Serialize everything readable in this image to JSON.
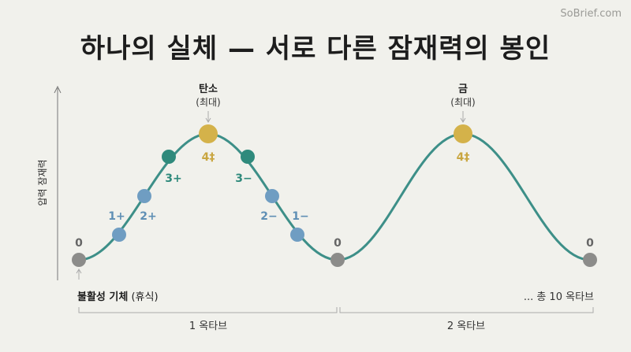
{
  "watermark": "SoBrief.com",
  "title": "하나의 실체 — 서로 다른 잠재력의 봉인",
  "y_axis_label": "압력 잠재력",
  "peaks": [
    {
      "name": "탄소",
      "sub": "(최대)",
      "value": "4‡"
    },
    {
      "name": "금",
      "sub": "(최대)",
      "value": "4‡"
    }
  ],
  "points_octave1": {
    "start": "0",
    "rising": [
      "1+",
      "2+",
      "3+"
    ],
    "falling": [
      "3−",
      "2−",
      "1−"
    ],
    "end": "0"
  },
  "end_label": "0",
  "bottom": {
    "noble_bold": "불활성 기체",
    "noble_rest": " (휴식)",
    "total": "... 총 10 옥타브"
  },
  "octaves": [
    "1 옥타브",
    "2 옥타브"
  ],
  "colors": {
    "curve": "#3d8f88",
    "gold": "#d4b24a",
    "teal": "#2f8a7c",
    "blue": "#6f9dc2",
    "gray": "#8c8c8a"
  }
}
